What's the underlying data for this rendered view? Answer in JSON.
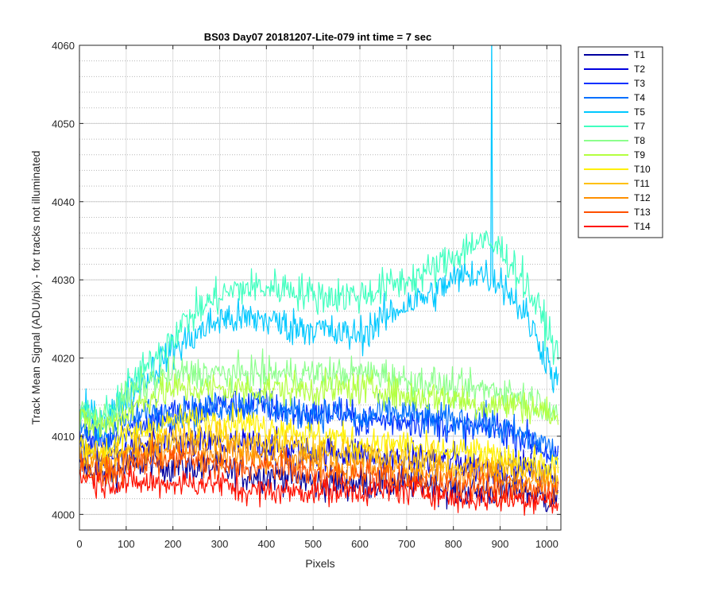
{
  "chart_data": {
    "type": "line",
    "title": "BS03 Day07 20181207-Lite-079 int time = 7 sec",
    "xlabel": "Pixels",
    "ylabel": "Track Mean Signal (ADU/pix) - for tracks not illuminated",
    "xlim": [
      0,
      1030
    ],
    "ylim": [
      3998,
      4060
    ],
    "x_ticks": [
      0,
      100,
      200,
      300,
      400,
      500,
      600,
      700,
      800,
      900,
      1000
    ],
    "y_ticks": [
      4000,
      4010,
      4020,
      4030,
      4040,
      4050,
      4060
    ],
    "y_minor_step": 2,
    "grid": true,
    "legend_position": "outside-top-right",
    "series_x": [
      0,
      50,
      100,
      150,
      200,
      250,
      300,
      350,
      400,
      450,
      500,
      550,
      600,
      650,
      700,
      750,
      800,
      850,
      900,
      950,
      1000,
      1024
    ],
    "series": [
      {
        "name": "T1",
        "color": "#00009F",
        "noise": 1.8,
        "values": [
          4006,
          4005,
          4006,
          4007,
          4006,
          4006,
          4006,
          4005,
          4005,
          4005,
          4004,
          4004,
          4004,
          4004,
          4004,
          4004,
          4003,
          4003,
          4003,
          4003,
          4002,
          4002
        ]
      },
      {
        "name": "T2",
        "color": "#0000DF",
        "noise": 1.8,
        "values": [
          4008,
          4007,
          4008,
          4009,
          4009,
          4009,
          4009,
          4009,
          4009,
          4008,
          4008,
          4008,
          4008,
          4007,
          4007,
          4007,
          4007,
          4006,
          4006,
          4006,
          4005,
          4005
        ]
      },
      {
        "name": "T3",
        "color": "#0030FF",
        "noise": 1.8,
        "values": [
          4010,
          4009,
          4011,
          4012,
          4013,
          4013,
          4014,
          4014,
          4014,
          4013,
          4013,
          4013,
          4012,
          4012,
          4012,
          4012,
          4011,
          4011,
          4011,
          4010,
          4008,
          4007
        ]
      },
      {
        "name": "T4",
        "color": "#0070FF",
        "noise": 1.8,
        "values": [
          4011,
          4010,
          4012,
          4013,
          4013,
          4013,
          4014,
          4014,
          4014,
          4013,
          4013,
          4013,
          4012,
          4013,
          4013,
          4012,
          4012,
          4012,
          4011,
          4010,
          4009,
          4007
        ]
      },
      {
        "name": "T5",
        "color": "#00C8FF",
        "noise": 2.0,
        "values": [
          4013,
          4012,
          4015,
          4018,
          4021,
          4023,
          4025,
          4025,
          4025,
          4024,
          4024,
          4023,
          4023,
          4025,
          4027,
          4028,
          4030,
          4031,
          4030,
          4026,
          4020,
          4016
        ]
      },
      {
        "name": "T7",
        "color": "#40FFBF",
        "noise": 2.0,
        "values": [
          4013,
          4012,
          4016,
          4019,
          4023,
          4026,
          4028,
          4029,
          4029,
          4029,
          4028,
          4028,
          4028,
          4029,
          4030,
          4031,
          4033,
          4035,
          4034,
          4030,
          4024,
          4020
        ]
      },
      {
        "name": "T8",
        "color": "#8CFF8C",
        "noise": 1.8,
        "values": [
          4013,
          4012,
          4015,
          4017,
          4018,
          4018,
          4018,
          4018,
          4018,
          4018,
          4018,
          4018,
          4018,
          4018,
          4017,
          4017,
          4016,
          4016,
          4016,
          4015,
          4014,
          4013
        ]
      },
      {
        "name": "T9",
        "color": "#B4FF40",
        "noise": 1.8,
        "values": [
          4012,
          4011,
          4013,
          4015,
          4016,
          4016,
          4016,
          4016,
          4016,
          4016,
          4016,
          4016,
          4016,
          4016,
          4015,
          4015,
          4015,
          4014,
          4014,
          4014,
          4013,
          4012
        ]
      },
      {
        "name": "T10",
        "color": "#FFF000",
        "noise": 1.6,
        "values": [
          4009,
          4008,
          4010,
          4011,
          4012,
          4012,
          4012,
          4012,
          4011,
          4011,
          4010,
          4010,
          4009,
          4009,
          4009,
          4008,
          4008,
          4008,
          4007,
          4007,
          4006,
          4006
        ]
      },
      {
        "name": "T11",
        "color": "#FFC000",
        "noise": 1.6,
        "values": [
          4008,
          4007,
          4008,
          4009,
          4010,
          4010,
          4010,
          4009,
          4009,
          4009,
          4008,
          4008,
          4008,
          4007,
          4007,
          4007,
          4006,
          4006,
          4006,
          4006,
          4005,
          4005
        ]
      },
      {
        "name": "T12",
        "color": "#FF9000",
        "noise": 1.6,
        "values": [
          4007,
          4006,
          4007,
          4008,
          4008,
          4008,
          4008,
          4008,
          4007,
          4007,
          4007,
          4006,
          4006,
          4006,
          4006,
          4005,
          4005,
          4005,
          4005,
          4004,
          4004,
          4004
        ]
      },
      {
        "name": "T13",
        "color": "#FF5000",
        "noise": 1.6,
        "values": [
          4006,
          4005,
          4006,
          4007,
          4007,
          4007,
          4006,
          4006,
          4006,
          4006,
          4005,
          4005,
          4005,
          4005,
          4004,
          4004,
          4004,
          4004,
          4003,
          4003,
          4003,
          4003
        ]
      },
      {
        "name": "T14",
        "color": "#FF1000",
        "noise": 1.5,
        "values": [
          4005,
          4004,
          4004,
          4004,
          4004,
          4004,
          4004,
          4003,
          4003,
          4003,
          4003,
          4003,
          4003,
          4003,
          4003,
          4003,
          4002,
          4002,
          4002,
          4002,
          4002,
          4001
        ]
      }
    ],
    "annotations": [
      {
        "series": "T5",
        "x": 882,
        "peak_value": 4062,
        "description": "single-pixel spike exceeding the top of the axis"
      }
    ]
  }
}
